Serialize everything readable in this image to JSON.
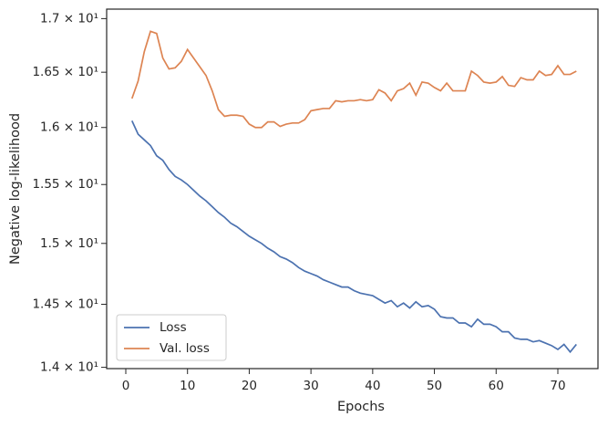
{
  "chart_data": {
    "type": "line",
    "xlabel": "Epochs",
    "ylabel": "Negative log-likelihood",
    "x": [
      1,
      2,
      3,
      4,
      5,
      6,
      7,
      8,
      9,
      10,
      11,
      12,
      13,
      14,
      15,
      16,
      17,
      18,
      19,
      20,
      21,
      22,
      23,
      24,
      25,
      26,
      27,
      28,
      29,
      30,
      31,
      32,
      33,
      34,
      35,
      36,
      37,
      38,
      39,
      40,
      41,
      42,
      43,
      44,
      45,
      46,
      47,
      48,
      49,
      50,
      51,
      52,
      53,
      54,
      55,
      56,
      57,
      58,
      59,
      60,
      61,
      62,
      63,
      64,
      65,
      66,
      67,
      68,
      69,
      70,
      71,
      72,
      73
    ],
    "series": [
      {
        "name": "Loss",
        "color": "#4c72b0",
        "values": [
          16.06,
          15.94,
          15.89,
          15.84,
          15.75,
          15.71,
          15.63,
          15.57,
          15.54,
          15.5,
          15.45,
          15.4,
          15.36,
          15.31,
          15.26,
          15.22,
          15.17,
          15.14,
          15.1,
          15.06,
          15.03,
          15.0,
          14.96,
          14.93,
          14.89,
          14.87,
          14.84,
          14.8,
          14.77,
          14.75,
          14.73,
          14.7,
          14.68,
          14.66,
          14.64,
          14.64,
          14.61,
          14.59,
          14.58,
          14.57,
          14.54,
          14.51,
          14.53,
          14.48,
          14.51,
          14.47,
          14.52,
          14.48,
          14.49,
          14.46,
          14.4,
          14.39,
          14.39,
          14.35,
          14.35,
          14.32,
          14.38,
          14.34,
          14.34,
          14.32,
          14.28,
          14.28,
          14.23,
          14.22,
          14.22,
          14.2,
          14.21,
          14.19,
          14.17,
          14.14,
          14.18,
          14.12,
          14.18
        ]
      },
      {
        "name": "Val. loss",
        "color": "#dd8452",
        "values": [
          16.26,
          16.42,
          16.69,
          16.88,
          16.86,
          16.63,
          16.53,
          16.54,
          16.6,
          16.71,
          16.63,
          16.55,
          16.47,
          16.33,
          16.16,
          16.1,
          16.11,
          16.11,
          16.1,
          16.03,
          16.0,
          16.0,
          16.05,
          16.05,
          16.01,
          16.03,
          16.04,
          16.04,
          16.07,
          16.15,
          16.16,
          16.17,
          16.17,
          16.24,
          16.23,
          16.24,
          16.24,
          16.25,
          16.24,
          16.25,
          16.34,
          16.31,
          16.24,
          16.33,
          16.35,
          16.4,
          16.29,
          16.41,
          16.4,
          16.36,
          16.33,
          16.4,
          16.33,
          16.33,
          16.33,
          16.51,
          16.47,
          16.41,
          16.4,
          16.41,
          16.46,
          16.38,
          16.37,
          16.45,
          16.43,
          16.43,
          16.51,
          16.47,
          16.48,
          16.56,
          16.48,
          16.48,
          16.51
        ]
      }
    ],
    "xlim": [
      -3.1,
      76.5
    ],
    "xticks": [
      0,
      10,
      20,
      30,
      40,
      50,
      60,
      70
    ],
    "ylim": [
      13.99,
      17.09
    ],
    "yscale": "log",
    "yticks": [
      {
        "value": 14,
        "label": "1.4 × 10¹"
      },
      {
        "value": 14.5,
        "label": "1.45 × 10¹"
      },
      {
        "value": 15,
        "label": "1.5 × 10¹"
      },
      {
        "value": 15.5,
        "label": "1.55 × 10¹"
      },
      {
        "value": 16,
        "label": "1.6 × 10¹"
      },
      {
        "value": 16.5,
        "label": "1.65 × 10¹"
      },
      {
        "value": 17,
        "label": "1.7 × 10¹"
      }
    ],
    "grid": false,
    "legend": "lower left"
  }
}
